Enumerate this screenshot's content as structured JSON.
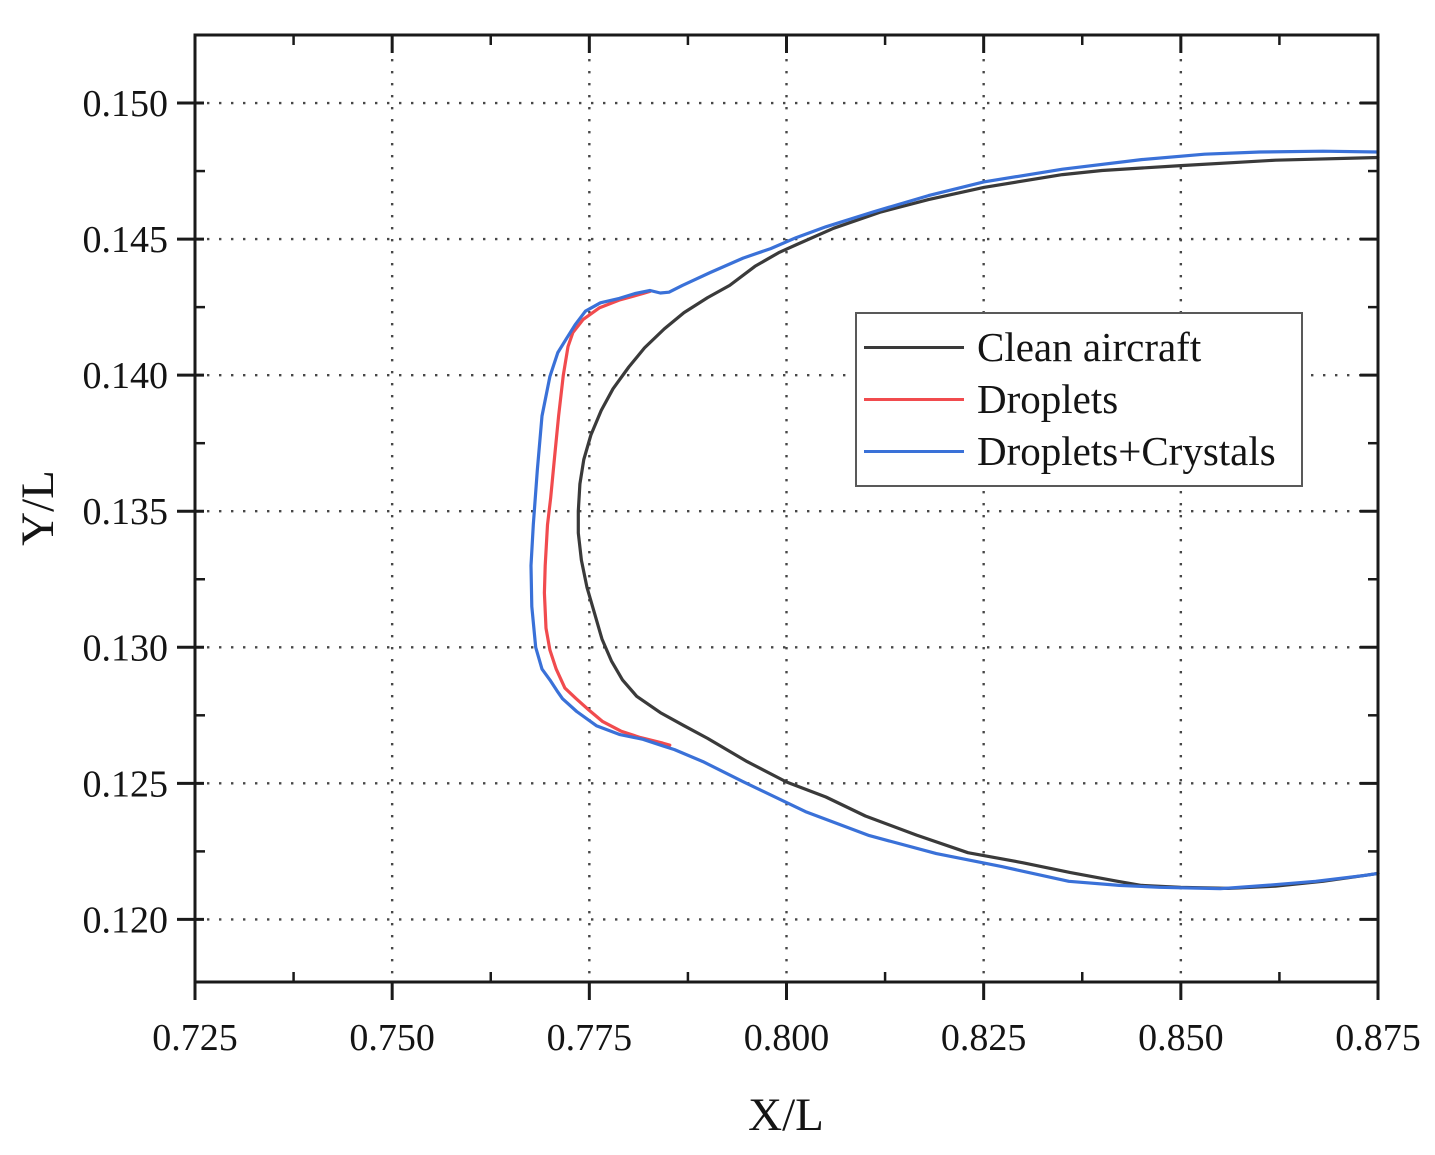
{
  "chart_data": {
    "type": "line",
    "title": "",
    "xlabel": "X/L",
    "ylabel": "Y/L",
    "xlim": [
      0.725,
      0.875
    ],
    "ylim": [
      0.1177,
      0.1525
    ],
    "x_ticks": [
      0.725,
      0.75,
      0.775,
      0.8,
      0.825,
      0.85,
      0.875
    ],
    "x_tick_labels": [
      "0.725",
      "0.750",
      "0.775",
      "0.800",
      "0.825",
      "0.850",
      "0.875"
    ],
    "x_minor_ticks": [
      0.7375,
      0.7625,
      0.7875,
      0.8125,
      0.8375,
      0.8625
    ],
    "y_ticks": [
      0.15,
      0.145,
      0.14,
      0.135,
      0.13,
      0.125,
      0.12
    ],
    "y_tick_labels": [
      "0.150",
      "0.145",
      "0.140",
      "0.135",
      "0.130",
      "0.125",
      "0.120"
    ],
    "y_minor_ticks": [
      0.1475,
      0.1425,
      0.1375,
      0.1325,
      0.1275,
      0.1225
    ],
    "grid": "dotted",
    "grid_color": "#474747",
    "axis_color": "#1a1a1a",
    "legend": {
      "position": "upper-right-inside",
      "items": [
        {
          "label": "Clean aircraft",
          "color": "#3a3a3a"
        },
        {
          "label": "Droplets",
          "color": "#f14b4e"
        },
        {
          "label": "Droplets+Crystals",
          "color": "#3a71d8"
        }
      ]
    },
    "series": [
      {
        "name": "Clean aircraft",
        "color": "#3a3a3a",
        "points": [
          [
            0.875,
            0.148
          ],
          [
            0.862,
            0.1479
          ],
          [
            0.85,
            0.1477
          ],
          [
            0.84,
            0.14752
          ],
          [
            0.835,
            0.14737
          ],
          [
            0.825,
            0.1469
          ],
          [
            0.818,
            0.14645
          ],
          [
            0.812,
            0.146
          ],
          [
            0.806,
            0.1454
          ],
          [
            0.8013,
            0.1448
          ],
          [
            0.799,
            0.1445
          ],
          [
            0.796,
            0.144
          ],
          [
            0.7928,
            0.1433
          ],
          [
            0.79,
            0.14285
          ],
          [
            0.787,
            0.1423
          ],
          [
            0.7845,
            0.1417
          ],
          [
            0.782,
            0.141
          ],
          [
            0.78,
            0.1403
          ],
          [
            0.778,
            0.1395
          ],
          [
            0.7765,
            0.1387
          ],
          [
            0.7752,
            0.1378
          ],
          [
            0.7743,
            0.1369
          ],
          [
            0.7738,
            0.136
          ],
          [
            0.7736,
            0.135
          ],
          [
            0.7736,
            0.1342
          ],
          [
            0.774,
            0.1332
          ],
          [
            0.7747,
            0.1322
          ],
          [
            0.7757,
            0.1312
          ],
          [
            0.7766,
            0.1303
          ],
          [
            0.7778,
            0.1295
          ],
          [
            0.7792,
            0.1288
          ],
          [
            0.781,
            0.1282
          ],
          [
            0.784,
            0.1276
          ],
          [
            0.787,
            0.12712
          ],
          [
            0.79,
            0.12665
          ],
          [
            0.795,
            0.1258
          ],
          [
            0.8,
            0.12505
          ],
          [
            0.805,
            0.1245
          ],
          [
            0.81,
            0.1238
          ],
          [
            0.8165,
            0.1231
          ],
          [
            0.823,
            0.12245
          ],
          [
            0.83,
            0.12208
          ],
          [
            0.836,
            0.12172
          ],
          [
            0.842,
            0.1214
          ],
          [
            0.845,
            0.12125
          ],
          [
            0.85,
            0.12118
          ],
          [
            0.856,
            0.12114
          ],
          [
            0.862,
            0.12122
          ],
          [
            0.868,
            0.1214
          ],
          [
            0.8734,
            0.12162
          ],
          [
            0.875,
            0.12169
          ]
        ]
      },
      {
        "name": "Droplets",
        "color": "#f14b4e",
        "points": [
          [
            0.7827,
            0.14308
          ],
          [
            0.7818,
            0.143
          ],
          [
            0.7789,
            0.14277
          ],
          [
            0.7763,
            0.14248
          ],
          [
            0.7742,
            0.14204
          ],
          [
            0.7729,
            0.14156
          ],
          [
            0.7723,
            0.14105
          ],
          [
            0.7717,
            0.14
          ],
          [
            0.7711,
            0.1385
          ],
          [
            0.7706,
            0.137
          ],
          [
            0.7701,
            0.1355
          ],
          [
            0.7697,
            0.1345
          ],
          [
            0.7694,
            0.133
          ],
          [
            0.7693,
            0.132
          ],
          [
            0.7695,
            0.1307
          ],
          [
            0.77,
            0.1299
          ],
          [
            0.7708,
            0.1292
          ],
          [
            0.7719,
            0.1285
          ],
          [
            0.7733,
            0.12812
          ],
          [
            0.775,
            0.12768
          ],
          [
            0.7767,
            0.12727
          ],
          [
            0.779,
            0.12692
          ],
          [
            0.7815,
            0.12668
          ],
          [
            0.7843,
            0.12648
          ],
          [
            0.7852,
            0.1264
          ]
        ]
      },
      {
        "name": "Droplets+Crystals",
        "color": "#3a71d8",
        "points": [
          [
            0.875,
            0.1482
          ],
          [
            0.868,
            0.14823
          ],
          [
            0.86,
            0.1482
          ],
          [
            0.853,
            0.14812
          ],
          [
            0.845,
            0.14792
          ],
          [
            0.835,
            0.14757
          ],
          [
            0.825,
            0.1471
          ],
          [
            0.818,
            0.1466
          ],
          [
            0.811,
            0.146
          ],
          [
            0.805,
            0.14545
          ],
          [
            0.8012,
            0.14505
          ],
          [
            0.798,
            0.14465
          ],
          [
            0.7945,
            0.1443
          ],
          [
            0.7903,
            0.14377
          ],
          [
            0.7868,
            0.1433
          ],
          [
            0.7851,
            0.14305
          ],
          [
            0.784,
            0.14302
          ],
          [
            0.7827,
            0.14311
          ],
          [
            0.7808,
            0.143
          ],
          [
            0.7788,
            0.14282
          ],
          [
            0.7764,
            0.14266
          ],
          [
            0.7745,
            0.14235
          ],
          [
            0.7732,
            0.14185
          ],
          [
            0.772,
            0.1413
          ],
          [
            0.771,
            0.14083
          ],
          [
            0.77,
            0.13995
          ],
          [
            0.769,
            0.1385
          ],
          [
            0.7684,
            0.1365
          ],
          [
            0.7679,
            0.1345
          ],
          [
            0.7676,
            0.133
          ],
          [
            0.7677,
            0.1315
          ],
          [
            0.7682,
            0.13
          ],
          [
            0.769,
            0.1292
          ],
          [
            0.77,
            0.1288
          ],
          [
            0.7709,
            0.1284
          ],
          [
            0.7716,
            0.12811
          ],
          [
            0.7734,
            0.12764
          ],
          [
            0.7759,
            0.12712
          ],
          [
            0.7788,
            0.1268
          ],
          [
            0.7818,
            0.12662
          ],
          [
            0.7843,
            0.12638
          ],
          [
            0.7858,
            0.12624
          ],
          [
            0.7894,
            0.1258
          ],
          [
            0.7945,
            0.12506
          ],
          [
            0.8024,
            0.12396
          ],
          [
            0.8105,
            0.12308
          ],
          [
            0.819,
            0.12242
          ],
          [
            0.8273,
            0.12194
          ],
          [
            0.8358,
            0.1214
          ],
          [
            0.8422,
            0.12125
          ],
          [
            0.8473,
            0.12118
          ],
          [
            0.855,
            0.12113
          ],
          [
            0.8608,
            0.12125
          ],
          [
            0.8671,
            0.1214
          ],
          [
            0.8734,
            0.12162
          ],
          [
            0.875,
            0.12169
          ]
        ]
      }
    ]
  }
}
